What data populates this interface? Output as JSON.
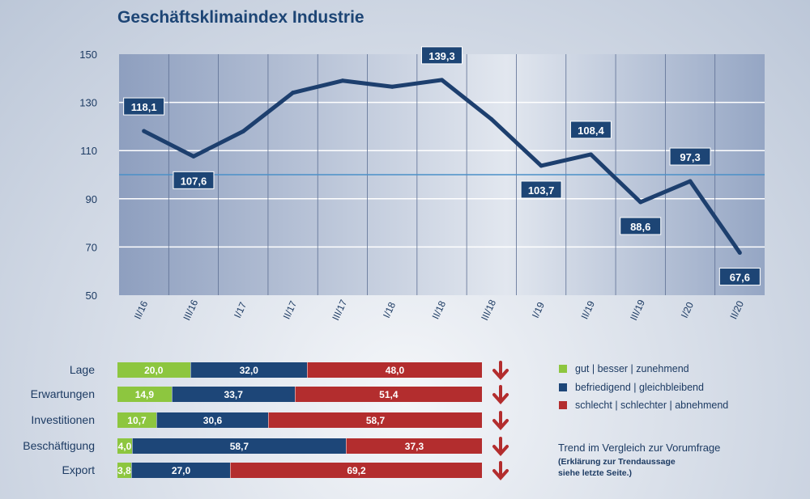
{
  "chart_data": [
    {
      "type": "line",
      "title": "Geschäftsklimaindex Industrie",
      "categories": [
        "II/16",
        "III/16",
        "I/17",
        "II/17",
        "III/17",
        "I/18",
        "II/18",
        "III/18",
        "I/19",
        "II/19",
        "III/19",
        "I/20",
        "II/20"
      ],
      "values": [
        118.1,
        107.6,
        118,
        134,
        139,
        136.5,
        139.3,
        123,
        103.7,
        108.4,
        88.6,
        97.3,
        67.6
      ],
      "data_labels": {
        "0": "118,1",
        "1": "107,6",
        "6": "139,3",
        "8": "103,7",
        "9": "108,4",
        "10": "88,6",
        "11": "97,3",
        "12": "67,6"
      },
      "ylim": [
        50,
        150
      ],
      "yticks": [
        "50",
        "70",
        "90",
        "110",
        "130",
        "150"
      ],
      "reference_line": 100,
      "grid": true,
      "line_color": "#1d3f6e",
      "reference_color": "#4a90c8"
    },
    {
      "type": "bar",
      "stacked": true,
      "orientation": "horizontal",
      "categories": [
        "Lage",
        "Erwartungen",
        "Investitionen",
        "Beschäftigung",
        "Export"
      ],
      "series": [
        {
          "name": "gut | besser | zunehmend",
          "color": "#8dc63f",
          "values": [
            20.0,
            14.9,
            10.7,
            4.0,
            3.8
          ],
          "labels": [
            "20,0",
            "14,9",
            "10,7",
            "4,0",
            "3,8"
          ]
        },
        {
          "name": "befriedigend | gleichbleibend",
          "color": "#1d4678",
          "values": [
            32.0,
            33.7,
            30.6,
            58.7,
            27.0
          ],
          "labels": [
            "32,0",
            "33,7",
            "30,6",
            "58,7",
            "27,0"
          ]
        },
        {
          "name": "schlecht | schlechter | abnehmend",
          "color": "#b32d2e",
          "values": [
            48.0,
            51.4,
            58.7,
            37.3,
            69.2
          ],
          "labels": [
            "48,0",
            "51,4",
            "58,7",
            "37,3",
            "69,2"
          ]
        }
      ],
      "trend": [
        "down",
        "down",
        "down",
        "down",
        "down"
      ],
      "legend": "right"
    }
  ],
  "trend_note": {
    "line1": "Trend im Vergleich zur Vorumfrage",
    "line2": "(Erklärung zur Trendaussage",
    "line3": "siehe letzte Seite.)"
  }
}
